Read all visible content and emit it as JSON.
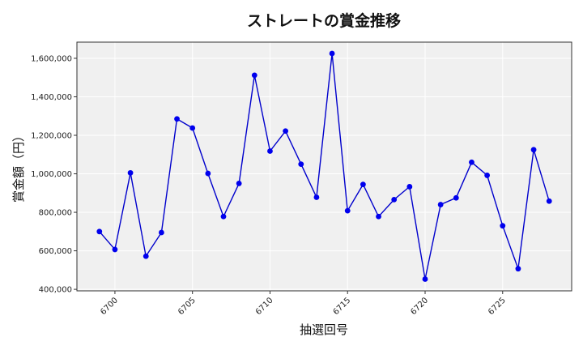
{
  "chart_data": {
    "type": "line",
    "title": "ストレートの賞金推移",
    "xlabel": "抽選回号",
    "ylabel": "賞金額（円）",
    "x": [
      6699,
      6700,
      6701,
      6702,
      6703,
      6704,
      6705,
      6706,
      6707,
      6708,
      6709,
      6710,
      6711,
      6712,
      6713,
      6714,
      6715,
      6716,
      6717,
      6718,
      6719,
      6720,
      6721,
      6722,
      6723,
      6724,
      6725,
      6726,
      6727,
      6728
    ],
    "values": [
      700000,
      607000,
      1005000,
      572000,
      695000,
      1285000,
      1238000,
      1002000,
      778000,
      950000,
      1512000,
      1118000,
      1222000,
      1050000,
      878000,
      1625000,
      808000,
      945000,
      778000,
      866000,
      933000,
      453000,
      840000,
      875000,
      1060000,
      992000,
      730000,
      507000,
      1125000,
      858000
    ],
    "xticks": [
      6700,
      6705,
      6710,
      6715,
      6720,
      6725
    ],
    "xtick_labels": [
      "6700",
      "6705",
      "6710",
      "6715",
      "6720",
      "6725"
    ],
    "yticks": [
      400000,
      600000,
      800000,
      1000000,
      1200000,
      1400000,
      1600000
    ],
    "ytick_labels": [
      "400,000",
      "600,000",
      "800,000",
      "1,000,000",
      "1,200,000",
      "1,400,000",
      "1,600,000"
    ],
    "xlim": [
      6697.55,
      6729.45
    ],
    "ylim": [
      392000,
      1684000
    ],
    "grid": true,
    "line_color": "#0000cc",
    "marker_color": "#0000ee",
    "plot_bg": "#f0f0f0"
  }
}
